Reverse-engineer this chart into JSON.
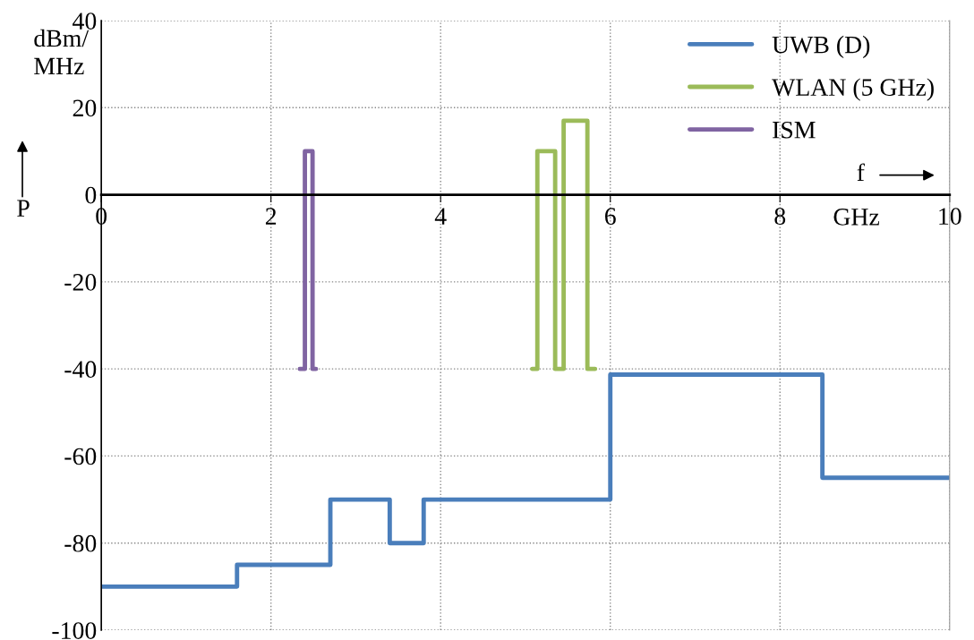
{
  "chart_data": {
    "type": "step",
    "ylabel": "dBm/\nMHz",
    "xlabel": "GHz",
    "xlim": [
      0,
      10
    ],
    "xticks": [
      0,
      2,
      4,
      6,
      8,
      10
    ],
    "ylim": [
      -100,
      40
    ],
    "yticks": [
      -100,
      -80,
      -60,
      -40,
      -20,
      0,
      20,
      40
    ],
    "grid": true,
    "legend": "top right",
    "line_style": "solid",
    "marker": "none",
    "annotations": [
      "P",
      "f"
    ],
    "series": [
      {
        "name": "UWB (D)",
        "color": "#4a7ebb",
        "x": [
          0,
          1.6,
          2.7,
          3.4,
          3.8,
          6.0,
          8.5,
          10
        ],
        "values": [
          -90,
          -85,
          -70,
          -80,
          -70,
          -41.3,
          -65,
          -65
        ]
      },
      {
        "name": "WLAN (5 GHz)",
        "color": "#9bbb59",
        "type": "line",
        "x": [
          5.08,
          5.14,
          5.14,
          5.35,
          5.35,
          5.45,
          5.45,
          5.73,
          5.73,
          5.82
        ],
        "values": [
          -40,
          -40,
          10,
          10,
          -40,
          -40,
          17,
          17,
          -40,
          -40
        ]
      },
      {
        "name": "ISM",
        "color": "#8064a2",
        "type": "line",
        "x": [
          2.34,
          2.4,
          2.4,
          2.49,
          2.49,
          2.53
        ],
        "values": [
          -40,
          -40,
          10,
          10,
          -40,
          -40
        ]
      }
    ]
  }
}
